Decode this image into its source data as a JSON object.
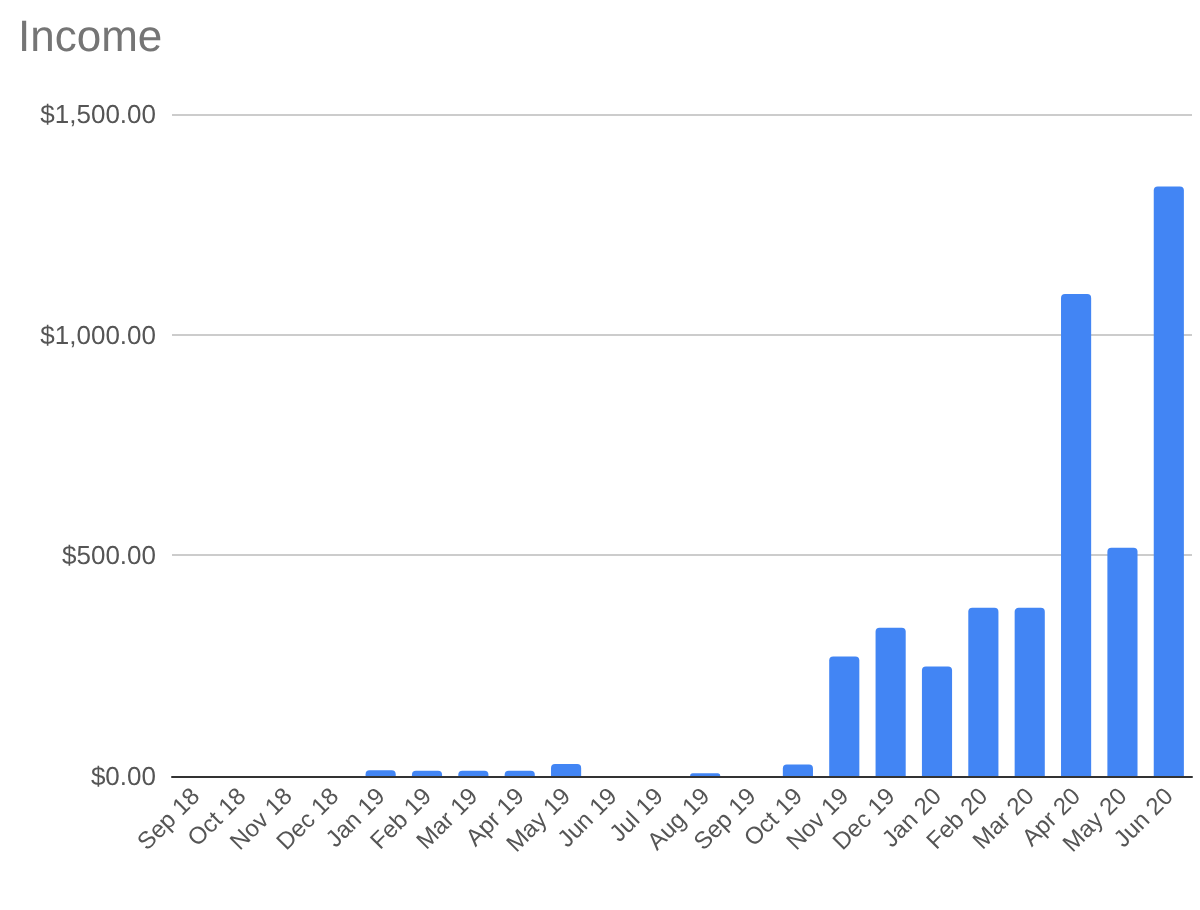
{
  "chart_data": {
    "type": "bar",
    "title": "Income",
    "categories": [
      "Sep 18",
      "Oct 18",
      "Nov 18",
      "Dec 18",
      "Jan 19",
      "Feb 19",
      "Mar 19",
      "Apr 19",
      "May 19",
      "Jun 19",
      "Jul 19",
      "Aug 19",
      "Sep 19",
      "Oct 19",
      "Nov 19",
      "Dec 19",
      "Jan 20",
      "Feb 20",
      "Mar 20",
      "Apr 20",
      "May 20",
      "Jun 20"
    ],
    "values": [
      0,
      0,
      0,
      0,
      13,
      12,
      12,
      12,
      27,
      0,
      0,
      6,
      0,
      26,
      271,
      336,
      248,
      381,
      381,
      1092,
      517,
      1336
    ],
    "color": "#4285f4",
    "ylim": [
      0,
      1500
    ],
    "yticks": [
      {
        "value": 0,
        "label": "$0.00"
      },
      {
        "value": 500,
        "label": "$500.00"
      },
      {
        "value": 1000,
        "label": "$1,000.00"
      },
      {
        "value": 1500,
        "label": "$1,500.00"
      }
    ],
    "grid": "y"
  }
}
